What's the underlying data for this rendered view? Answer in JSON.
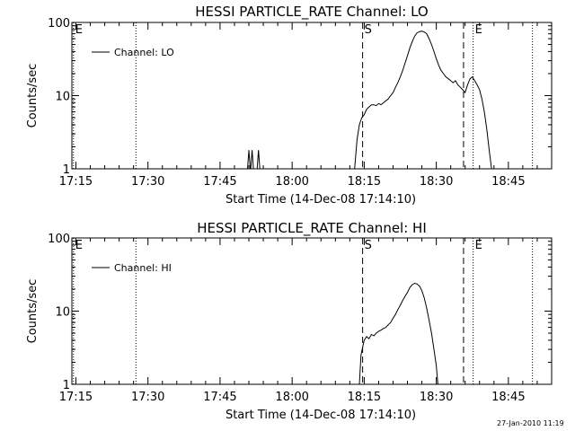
{
  "chart_data": [
    {
      "type": "line",
      "title": "HESSI PARTICLE_RATE Channel: LO",
      "xlabel": "Start Time (14-Dec-08 17:14:10)",
      "ylabel": "Counts/sec",
      "y_scale": "log",
      "ylim": [
        1,
        100
      ],
      "xlim": [
        "17:14:10",
        "18:54:00"
      ],
      "x_ticks": [
        "17:15",
        "17:30",
        "17:45",
        "18:00",
        "18:15",
        "18:30",
        "18:45"
      ],
      "y_ticks": [
        "1",
        "10",
        "100"
      ],
      "legend": {
        "position": "top-left",
        "entries": [
          "Channel: LO"
        ]
      },
      "markers": [
        {
          "time": "17:14:30",
          "label": "E",
          "style": "dotted"
        },
        {
          "time": "17:27:30",
          "label": "",
          "style": "dotted"
        },
        {
          "time": "18:14:40",
          "label": "S",
          "style": "dashed"
        },
        {
          "time": "18:35:40",
          "label": "",
          "style": "dashed"
        },
        {
          "time": "18:37:40",
          "label": "E",
          "style": "dotted"
        },
        {
          "time": "18:50:00",
          "label": "",
          "style": "dotted"
        }
      ],
      "spikes": [
        {
          "time": "17:51:00",
          "peak": 1.8
        },
        {
          "time": "17:51:40",
          "peak": 1.8
        },
        {
          "time": "17:53:00",
          "peak": 1.8
        }
      ],
      "series": [
        {
          "name": "Channel: LO",
          "points": [
            [
              "18:13:00",
              1
            ],
            [
              "18:13:30",
              2.5
            ],
            [
              "18:14:00",
              4
            ],
            [
              "18:14:30",
              5
            ],
            [
              "18:15:00",
              5.5
            ],
            [
              "18:15:30",
              6.5
            ],
            [
              "18:16:00",
              7
            ],
            [
              "18:16:30",
              7.5
            ],
            [
              "18:17:00",
              7.5
            ],
            [
              "18:17:30",
              7.3
            ],
            [
              "18:18:00",
              7.8
            ],
            [
              "18:18:30",
              7.5
            ],
            [
              "18:19:00",
              8
            ],
            [
              "18:19:30",
              8.5
            ],
            [
              "18:20:00",
              9
            ],
            [
              "18:20:30",
              10
            ],
            [
              "18:21:00",
              11
            ],
            [
              "18:21:30",
              13
            ],
            [
              "18:22:00",
              15
            ],
            [
              "18:22:30",
              18
            ],
            [
              "18:23:00",
              22
            ],
            [
              "18:23:30",
              28
            ],
            [
              "18:24:00",
              35
            ],
            [
              "18:24:30",
              45
            ],
            [
              "18:25:00",
              55
            ],
            [
              "18:25:30",
              65
            ],
            [
              "18:26:00",
              72
            ],
            [
              "18:26:30",
              75
            ],
            [
              "18:27:00",
              76
            ],
            [
              "18:27:30",
              74
            ],
            [
              "18:28:00",
              70
            ],
            [
              "18:28:30",
              60
            ],
            [
              "18:29:00",
              50
            ],
            [
              "18:29:30",
              40
            ],
            [
              "18:30:00",
              32
            ],
            [
              "18:30:30",
              26
            ],
            [
              "18:31:00",
              22
            ],
            [
              "18:31:30",
              20
            ],
            [
              "18:32:00",
              18
            ],
            [
              "18:32:30",
              17
            ],
            [
              "18:33:00",
              16
            ],
            [
              "18:33:30",
              15
            ],
            [
              "18:34:00",
              16
            ],
            [
              "18:34:30",
              14
            ],
            [
              "18:35:00",
              13
            ],
            [
              "18:35:30",
              12
            ],
            [
              "18:36:00",
              11
            ],
            [
              "18:36:30",
              14
            ],
            [
              "18:37:00",
              17
            ],
            [
              "18:37:30",
              18
            ],
            [
              "18:38:00",
              16
            ],
            [
              "18:38:30",
              14
            ],
            [
              "18:39:00",
              12
            ],
            [
              "18:39:30",
              9
            ],
            [
              "18:40:00",
              6
            ],
            [
              "18:40:30",
              3.5
            ],
            [
              "18:41:00",
              1.8
            ],
            [
              "18:41:30",
              1
            ]
          ]
        }
      ]
    },
    {
      "type": "line",
      "title": "HESSI PARTICLE_RATE Channel: HI",
      "xlabel": "Start Time (14-Dec-08 17:14:10)",
      "ylabel": "Counts/sec",
      "y_scale": "log",
      "ylim": [
        1,
        100
      ],
      "xlim": [
        "17:14:10",
        "18:54:00"
      ],
      "x_ticks": [
        "17:15",
        "17:30",
        "17:45",
        "18:00",
        "18:15",
        "18:30",
        "18:45"
      ],
      "y_ticks": [
        "1",
        "10",
        "100"
      ],
      "legend": {
        "position": "top-left",
        "entries": [
          "Channel: HI"
        ]
      },
      "markers": [
        {
          "time": "17:14:30",
          "label": "E",
          "style": "dotted"
        },
        {
          "time": "17:27:30",
          "label": "",
          "style": "dotted"
        },
        {
          "time": "18:14:40",
          "label": "S",
          "style": "dashed"
        },
        {
          "time": "18:35:40",
          "label": "",
          "style": "dashed"
        },
        {
          "time": "18:37:40",
          "label": "E",
          "style": "dotted"
        },
        {
          "time": "18:50:00",
          "label": "",
          "style": "dotted"
        }
      ],
      "spikes": [],
      "series": [
        {
          "name": "Channel: HI",
          "points": [
            [
              "18:14:00",
              1
            ],
            [
              "18:14:20",
              2.5
            ],
            [
              "18:14:40",
              3.2
            ],
            [
              "18:15:00",
              4
            ],
            [
              "18:15:30",
              4.5
            ],
            [
              "18:16:00",
              4.2
            ],
            [
              "18:16:30",
              4.8
            ],
            [
              "18:17:00",
              4.6
            ],
            [
              "18:17:30",
              5
            ],
            [
              "18:18:00",
              5.3
            ],
            [
              "18:18:30",
              5.5
            ],
            [
              "18:19:00",
              5.8
            ],
            [
              "18:19:30",
              6
            ],
            [
              "18:20:00",
              6.5
            ],
            [
              "18:20:30",
              7
            ],
            [
              "18:21:00",
              8
            ],
            [
              "18:21:30",
              9
            ],
            [
              "18:22:00",
              10.5
            ],
            [
              "18:22:30",
              12
            ],
            [
              "18:23:00",
              14
            ],
            [
              "18:23:30",
              16
            ],
            [
              "18:24:00",
              18
            ],
            [
              "18:24:30",
              21
            ],
            [
              "18:25:00",
              23
            ],
            [
              "18:25:30",
              24
            ],
            [
              "18:26:00",
              23.5
            ],
            [
              "18:26:30",
              22
            ],
            [
              "18:27:00",
              19
            ],
            [
              "18:27:30",
              15
            ],
            [
              "18:28:00",
              11
            ],
            [
              "18:28:30",
              7.5
            ],
            [
              "18:29:00",
              5
            ],
            [
              "18:29:30",
              3
            ],
            [
              "18:30:00",
              1.8
            ],
            [
              "18:30:20",
              1
            ]
          ]
        }
      ]
    }
  ],
  "footer": {
    "timestamp": "27-Jan-2010 11:19"
  }
}
